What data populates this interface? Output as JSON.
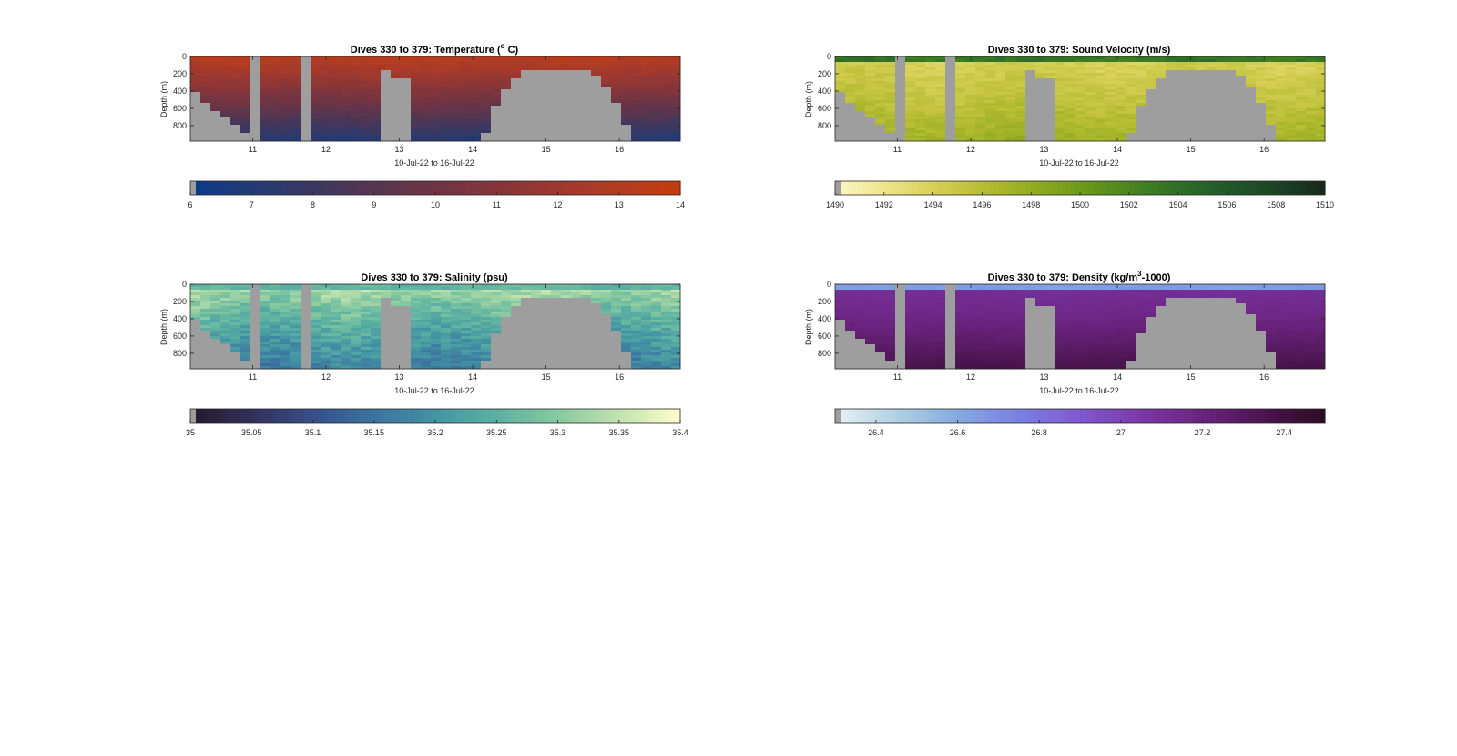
{
  "colors": {
    "mask": "#9e9e9e",
    "axis": "#262626"
  },
  "chart_data": [
    {
      "id": "temperature",
      "type": "heatmap",
      "title_main": "Dives 330 to 379: Temperature (",
      "title_sup": "o",
      "title_tail": " C)",
      "xlabel": "10-Jul-22 to 16-Jul-22",
      "ylabel": "Depth (m)",
      "x_ticks": [
        "11",
        "12",
        "13",
        "14",
        "15",
        "16"
      ],
      "x_tick_values": [
        11,
        12,
        13,
        14,
        15,
        16
      ],
      "xlim": [
        10.15,
        16.83
      ],
      "y_ticks": [
        "0",
        "200",
        "400",
        "600",
        "800"
      ],
      "y_tick_values": [
        0,
        200,
        400,
        600,
        800
      ],
      "ylim": [
        0,
        980
      ],
      "y_reversed": true,
      "colorbar": {
        "ticks": [
          "6",
          "7",
          "8",
          "9",
          "10",
          "11",
          "12",
          "13",
          "14"
        ],
        "tick_values": [
          6,
          7,
          8,
          9,
          10,
          11,
          12,
          13,
          14
        ],
        "range": [
          6,
          14
        ],
        "colormap": [
          "#0b3a8a",
          "#243a73",
          "#3b3760",
          "#563650",
          "#6e3444",
          "#85353a",
          "#9c3830",
          "#b33c22",
          "#c43c0e"
        ]
      },
      "field": {
        "surface_value": 13.2,
        "bottom_value": 7.0,
        "noise": 0.25
      }
    },
    {
      "id": "sound-velocity",
      "type": "heatmap",
      "title_main": "Dives 330 to 379: Sound Velocity (m/s)",
      "title_sup": "",
      "title_tail": "",
      "xlabel": "10-Jul-22 to 16-Jul-22",
      "ylabel": "Depth (m)",
      "x_ticks": [
        "11",
        "12",
        "13",
        "14",
        "15",
        "16"
      ],
      "x_tick_values": [
        11,
        12,
        13,
        14,
        15,
        16
      ],
      "xlim": [
        10.15,
        16.83
      ],
      "y_ticks": [
        "0",
        "200",
        "400",
        "600",
        "800"
      ],
      "y_tick_values": [
        0,
        200,
        400,
        600,
        800
      ],
      "ylim": [
        0,
        980
      ],
      "y_reversed": true,
      "colorbar": {
        "ticks": [
          "1490",
          "1492",
          "1494",
          "1496",
          "1498",
          "1500",
          "1502",
          "1504",
          "1506",
          "1508",
          "1510"
        ],
        "tick_values": [
          1490,
          1492,
          1494,
          1496,
          1498,
          1500,
          1502,
          1504,
          1506,
          1508,
          1510
        ],
        "range": [
          1490,
          1510
        ],
        "colormap": [
          "#fbf6c2",
          "#ede48a",
          "#d6cf55",
          "#b7bd34",
          "#93ac21",
          "#6f9a1c",
          "#4b861f",
          "#2f6f27",
          "#215a2a",
          "#1c4426",
          "#172a1c"
        ]
      },
      "field": {
        "surface_value": 1503.5,
        "mid_value": 1494.2,
        "bottom_value": 1497.5,
        "noise": 0.7
      }
    },
    {
      "id": "salinity",
      "type": "heatmap",
      "title_main": "Dives 330 to 379: Salinity (psu)",
      "title_sup": "",
      "title_tail": "",
      "xlabel": "10-Jul-22 to 16-Jul-22",
      "ylabel": "Depth (m)",
      "x_ticks": [
        "11",
        "12",
        "13",
        "14",
        "15",
        "16"
      ],
      "x_tick_values": [
        11,
        12,
        13,
        14,
        15,
        16
      ],
      "xlim": [
        10.15,
        16.83
      ],
      "y_ticks": [
        "0",
        "200",
        "400",
        "600",
        "800"
      ],
      "y_tick_values": [
        0,
        200,
        400,
        600,
        800
      ],
      "ylim": [
        0,
        980
      ],
      "y_reversed": true,
      "colorbar": {
        "ticks": [
          "35",
          "35.05",
          "35.1",
          "35.15",
          "35.2",
          "35.25",
          "35.3",
          "35.35",
          "35.4"
        ],
        "tick_values": [
          35,
          35.05,
          35.1,
          35.15,
          35.2,
          35.25,
          35.3,
          35.35,
          35.4
        ],
        "range": [
          35,
          35.4
        ],
        "colormap": [
          "#231a2e",
          "#33305b",
          "#36508a",
          "#3c739f",
          "#4394a3",
          "#5bb0a2",
          "#86c9a0",
          "#bfe2ad",
          "#fdfccc"
        ]
      },
      "field": {
        "surface_value": 35.26,
        "upper_value": 35.33,
        "bottom_value": 35.17,
        "noise": 0.03
      }
    },
    {
      "id": "density",
      "type": "heatmap",
      "title_main": "Dives 330 to 379: Density (kg/m",
      "title_sup": "3",
      "title_tail": "-1000)",
      "xlabel": "10-Jul-22 to 16-Jul-22",
      "ylabel": "Depth (m)",
      "x_ticks": [
        "11",
        "12",
        "13",
        "14",
        "15",
        "16"
      ],
      "x_tick_values": [
        11,
        12,
        13,
        14,
        15,
        16
      ],
      "xlim": [
        10.15,
        16.83
      ],
      "y_ticks": [
        "0",
        "200",
        "400",
        "600",
        "800"
      ],
      "y_tick_values": [
        0,
        200,
        400,
        600,
        800
      ],
      "ylim": [
        0,
        980
      ],
      "y_reversed": true,
      "colorbar": {
        "ticks": [
          "26.4",
          "26.6",
          "26.8",
          "27",
          "27.2",
          "27.4"
        ],
        "tick_values": [
          26.4,
          26.6,
          26.8,
          27,
          27.2,
          27.4
        ],
        "range": [
          26.3,
          27.5
        ],
        "colormap": [
          "#e6f2f2",
          "#aed0e3",
          "#85a9e1",
          "#7a7fe3",
          "#8059cf",
          "#7c38a8",
          "#6a237e",
          "#4c1551",
          "#2e0b25"
        ]
      },
      "field": {
        "surface_value": 26.65,
        "upper_value": 27.12,
        "bottom_value": 27.38,
        "noise": 0.02
      }
    }
  ]
}
